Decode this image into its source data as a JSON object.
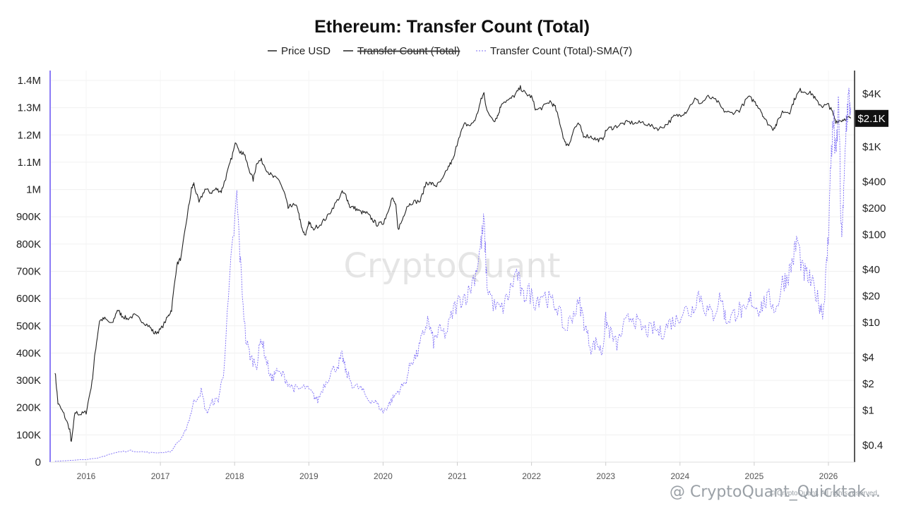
{
  "chart_data": {
    "type": "line",
    "title": "Ethereum: Transfer Count (Total)",
    "legend": [
      {
        "label": "Price USD",
        "color": "#222222",
        "style": "solid",
        "hidden": false
      },
      {
        "label": "Transfer Count (Total)",
        "color": "#222222",
        "style": "solid",
        "hidden": true
      },
      {
        "label": "Transfer Count (Total)-SMA(7)",
        "color": "#7b6cf6",
        "style": "dashed",
        "hidden": false
      }
    ],
    "legend_position": "top-center",
    "x_ticks": [
      "2016",
      "2017",
      "2018",
      "2019",
      "2020",
      "2021",
      "2022",
      "2023",
      "2024",
      "2025",
      "2026"
    ],
    "x_range": [
      2015.58,
      2026.3
    ],
    "y_left": {
      "ticks": [
        "0",
        "100K",
        "200K",
        "300K",
        "400K",
        "500K",
        "600K",
        "700K",
        "800K",
        "900K",
        "1M",
        "1.1M",
        "1.2M",
        "1.3M",
        "1.4M"
      ],
      "range": [
        0,
        1400000
      ]
    },
    "y_right": {
      "scale": "log",
      "ticks": [
        {
          "label": "$4K",
          "value": 4000
        },
        {
          "label": "$1K",
          "value": 1000
        },
        {
          "label": "$400",
          "value": 400
        },
        {
          "label": "$200",
          "value": 200
        },
        {
          "label": "$100",
          "value": 100
        },
        {
          "label": "$40",
          "value": 40
        },
        {
          "label": "$20",
          "value": 20
        },
        {
          "label": "$10",
          "value": 10
        },
        {
          "label": "$4",
          "value": 4
        },
        {
          "label": "$2",
          "value": 2
        },
        {
          "label": "$1",
          "value": 1
        },
        {
          "label": "$0.4",
          "value": 0.4
        }
      ],
      "current_value_label": "$2.1K",
      "current_value": 2100
    },
    "series": [
      {
        "name": "Price USD",
        "axis": "right",
        "color": "#222222",
        "points": [
          [
            2015.58,
            2.8
          ],
          [
            2015.62,
            1.2
          ],
          [
            2015.7,
            0.9
          ],
          [
            2015.78,
            0.6
          ],
          [
            2015.8,
            0.42
          ],
          [
            2015.85,
            0.95
          ],
          [
            2015.92,
            0.9
          ],
          [
            2016.0,
            0.95
          ],
          [
            2016.08,
            2.1
          ],
          [
            2016.12,
            4.5
          ],
          [
            2016.18,
            10.5
          ],
          [
            2016.25,
            11
          ],
          [
            2016.35,
            9.5
          ],
          [
            2016.42,
            14
          ],
          [
            2016.48,
            12
          ],
          [
            2016.55,
            11
          ],
          [
            2016.65,
            12
          ],
          [
            2016.75,
            10.5
          ],
          [
            2016.85,
            9.0
          ],
          [
            2016.92,
            7.5
          ],
          [
            2017.0,
            8.2
          ],
          [
            2017.1,
            11.5
          ],
          [
            2017.15,
            14
          ],
          [
            2017.22,
            45
          ],
          [
            2017.28,
            55
          ],
          [
            2017.36,
            160
          ],
          [
            2017.42,
            330
          ],
          [
            2017.45,
            380
          ],
          [
            2017.52,
            230
          ],
          [
            2017.6,
            330
          ],
          [
            2017.68,
            300
          ],
          [
            2017.75,
            330
          ],
          [
            2017.82,
            310
          ],
          [
            2017.88,
            440
          ],
          [
            2017.95,
            700
          ],
          [
            2018.02,
            1150
          ],
          [
            2018.08,
            850
          ],
          [
            2018.12,
            860
          ],
          [
            2018.18,
            600
          ],
          [
            2018.25,
            420
          ],
          [
            2018.3,
            670
          ],
          [
            2018.36,
            700
          ],
          [
            2018.45,
            520
          ],
          [
            2018.52,
            450
          ],
          [
            2018.6,
            420
          ],
          [
            2018.68,
            280
          ],
          [
            2018.72,
            200
          ],
          [
            2018.78,
            220
          ],
          [
            2018.85,
            200
          ],
          [
            2018.9,
            120
          ],
          [
            2018.95,
            95
          ],
          [
            2019.0,
            140
          ],
          [
            2019.05,
            115
          ],
          [
            2019.15,
            130
          ],
          [
            2019.25,
            160
          ],
          [
            2019.35,
            220
          ],
          [
            2019.45,
            300
          ],
          [
            2019.5,
            280
          ],
          [
            2019.55,
            210
          ],
          [
            2019.62,
            200
          ],
          [
            2019.7,
            180
          ],
          [
            2019.78,
            175
          ],
          [
            2019.85,
            150
          ],
          [
            2019.92,
            130
          ],
          [
            2020.0,
            135
          ],
          [
            2020.05,
            170
          ],
          [
            2020.12,
            260
          ],
          [
            2020.17,
            220
          ],
          [
            2020.2,
            115
          ],
          [
            2020.25,
            140
          ],
          [
            2020.32,
            210
          ],
          [
            2020.4,
            235
          ],
          [
            2020.5,
            240
          ],
          [
            2020.58,
            390
          ],
          [
            2020.65,
            380
          ],
          [
            2020.72,
            360
          ],
          [
            2020.8,
            420
          ],
          [
            2020.88,
            590
          ],
          [
            2020.95,
            730
          ],
          [
            2021.02,
            1300
          ],
          [
            2021.1,
            1800
          ],
          [
            2021.18,
            1750
          ],
          [
            2021.25,
            2100
          ],
          [
            2021.32,
            3400
          ],
          [
            2021.36,
            4100
          ],
          [
            2021.4,
            2500
          ],
          [
            2021.5,
            2000
          ],
          [
            2021.55,
            2300
          ],
          [
            2021.6,
            3200
          ],
          [
            2021.7,
            3400
          ],
          [
            2021.78,
            3900
          ],
          [
            2021.85,
            4700
          ],
          [
            2021.92,
            4000
          ],
          [
            2022.0,
            3700
          ],
          [
            2022.06,
            2600
          ],
          [
            2022.15,
            2800
          ],
          [
            2022.25,
            3300
          ],
          [
            2022.32,
            2800
          ],
          [
            2022.38,
            1900
          ],
          [
            2022.45,
            1100
          ],
          [
            2022.5,
            1050
          ],
          [
            2022.58,
            1650
          ],
          [
            2022.64,
            1800
          ],
          [
            2022.7,
            1350
          ],
          [
            2022.8,
            1300
          ],
          [
            2022.88,
            1200
          ],
          [
            2022.95,
            1200
          ],
          [
            2023.02,
            1600
          ],
          [
            2023.1,
            1650
          ],
          [
            2023.2,
            1800
          ],
          [
            2023.3,
            1900
          ],
          [
            2023.4,
            1850
          ],
          [
            2023.5,
            1900
          ],
          [
            2023.62,
            1700
          ],
          [
            2023.72,
            1600
          ],
          [
            2023.82,
            1800
          ],
          [
            2023.92,
            2200
          ],
          [
            2024.0,
            2300
          ],
          [
            2024.08,
            2500
          ],
          [
            2024.2,
            3500
          ],
          [
            2024.28,
            3100
          ],
          [
            2024.38,
            3700
          ],
          [
            2024.5,
            3300
          ],
          [
            2024.58,
            2600
          ],
          [
            2024.68,
            2400
          ],
          [
            2024.8,
            2600
          ],
          [
            2024.92,
            3700
          ],
          [
            2025.0,
            3300
          ],
          [
            2025.08,
            2700
          ],
          [
            2025.15,
            2000
          ],
          [
            2025.25,
            1600
          ],
          [
            2025.3,
            1800
          ],
          [
            2025.38,
            2500
          ],
          [
            2025.48,
            2500
          ],
          [
            2025.55,
            3600
          ],
          [
            2025.62,
            4400
          ],
          [
            2025.7,
            4200
          ],
          [
            2025.78,
            4000
          ],
          [
            2025.85,
            3200
          ],
          [
            2025.92,
            2900
          ],
          [
            2026.0,
            3000
          ],
          [
            2026.05,
            2500
          ],
          [
            2026.1,
            1950
          ],
          [
            2026.18,
            2000
          ],
          [
            2026.25,
            2150
          ],
          [
            2026.3,
            2100
          ]
        ]
      },
      {
        "name": "Transfer Count (Total)-SMA(7)",
        "axis": "left",
        "color": "#7b6cf6",
        "points": [
          [
            2015.58,
            3000
          ],
          [
            2015.75,
            6000
          ],
          [
            2016.0,
            10000
          ],
          [
            2016.15,
            14000
          ],
          [
            2016.3,
            28000
          ],
          [
            2016.45,
            38000
          ],
          [
            2016.6,
            42000
          ],
          [
            2016.75,
            38000
          ],
          [
            2016.9,
            34000
          ],
          [
            2017.05,
            36000
          ],
          [
            2017.15,
            40000
          ],
          [
            2017.22,
            70000
          ],
          [
            2017.3,
            90000
          ],
          [
            2017.38,
            150000
          ],
          [
            2017.45,
            220000
          ],
          [
            2017.55,
            260000
          ],
          [
            2017.62,
            180000
          ],
          [
            2017.7,
            220000
          ],
          [
            2017.78,
            230000
          ],
          [
            2017.85,
            330000
          ],
          [
            2017.95,
            720000
          ],
          [
            2018.03,
            970000
          ],
          [
            2018.08,
            720000
          ],
          [
            2018.15,
            450000
          ],
          [
            2018.22,
            380000
          ],
          [
            2018.3,
            360000
          ],
          [
            2018.36,
            460000
          ],
          [
            2018.42,
            380000
          ],
          [
            2018.5,
            300000
          ],
          [
            2018.55,
            330000
          ],
          [
            2018.65,
            320000
          ],
          [
            2018.75,
            280000
          ],
          [
            2018.85,
            265000
          ],
          [
            2018.95,
            275000
          ],
          [
            2019.05,
            250000
          ],
          [
            2019.12,
            225000
          ],
          [
            2019.2,
            280000
          ],
          [
            2019.3,
            330000
          ],
          [
            2019.4,
            360000
          ],
          [
            2019.45,
            390000
          ],
          [
            2019.5,
            330000
          ],
          [
            2019.6,
            280000
          ],
          [
            2019.7,
            270000
          ],
          [
            2019.8,
            230000
          ],
          [
            2019.9,
            220000
          ],
          [
            2020.0,
            185000
          ],
          [
            2020.05,
            200000
          ],
          [
            2020.12,
            230000
          ],
          [
            2020.2,
            260000
          ],
          [
            2020.3,
            290000
          ],
          [
            2020.38,
            370000
          ],
          [
            2020.45,
            390000
          ],
          [
            2020.52,
            450000
          ],
          [
            2020.6,
            520000
          ],
          [
            2020.68,
            440000
          ],
          [
            2020.75,
            480000
          ],
          [
            2020.85,
            470000
          ],
          [
            2020.95,
            560000
          ],
          [
            2021.05,
            600000
          ],
          [
            2021.15,
            620000
          ],
          [
            2021.25,
            700000
          ],
          [
            2021.32,
            800000
          ],
          [
            2021.36,
            880000
          ],
          [
            2021.4,
            650000
          ],
          [
            2021.5,
            570000
          ],
          [
            2021.6,
            560000
          ],
          [
            2021.7,
            620000
          ],
          [
            2021.8,
            700000
          ],
          [
            2021.88,
            600000
          ],
          [
            2021.95,
            630000
          ],
          [
            2022.05,
            590000
          ],
          [
            2022.15,
            620000
          ],
          [
            2022.25,
            590000
          ],
          [
            2022.35,
            570000
          ],
          [
            2022.45,
            480000
          ],
          [
            2022.55,
            540000
          ],
          [
            2022.65,
            580000
          ],
          [
            2022.72,
            500000
          ],
          [
            2022.8,
            420000
          ],
          [
            2022.88,
            440000
          ],
          [
            2022.95,
            400000
          ],
          [
            2023.0,
            520000
          ],
          [
            2023.05,
            480000
          ],
          [
            2023.15,
            430000
          ],
          [
            2023.25,
            500000
          ],
          [
            2023.35,
            540000
          ],
          [
            2023.45,
            500000
          ],
          [
            2023.55,
            480000
          ],
          [
            2023.65,
            490000
          ],
          [
            2023.75,
            470000
          ],
          [
            2023.85,
            510000
          ],
          [
            2023.95,
            520000
          ],
          [
            2024.05,
            560000
          ],
          [
            2024.15,
            550000
          ],
          [
            2024.25,
            620000
          ],
          [
            2024.35,
            560000
          ],
          [
            2024.45,
            540000
          ],
          [
            2024.55,
            610000
          ],
          [
            2024.62,
            520000
          ],
          [
            2024.72,
            540000
          ],
          [
            2024.8,
            560000
          ],
          [
            2024.88,
            540000
          ],
          [
            2024.95,
            600000
          ],
          [
            2025.05,
            560000
          ],
          [
            2025.12,
            580000
          ],
          [
            2025.2,
            600000
          ],
          [
            2025.3,
            560000
          ],
          [
            2025.38,
            660000
          ],
          [
            2025.45,
            680000
          ],
          [
            2025.52,
            740000
          ],
          [
            2025.58,
            820000
          ],
          [
            2025.65,
            700000
          ],
          [
            2025.72,
            680000
          ],
          [
            2025.8,
            640000
          ],
          [
            2025.88,
            580000
          ],
          [
            2025.93,
            550000
          ],
          [
            2025.97,
            700000
          ],
          [
            2026.0,
            840000
          ],
          [
            2026.04,
            1150000
          ],
          [
            2026.07,
            1250000
          ],
          [
            2026.1,
            1100000
          ],
          [
            2026.14,
            1330000
          ],
          [
            2026.17,
            830000
          ],
          [
            2026.2,
            920000
          ],
          [
            2026.24,
            1250000
          ],
          [
            2026.27,
            1330000
          ],
          [
            2026.3,
            1300000
          ]
        ]
      }
    ]
  },
  "watermark": {
    "center": "CryptoQuant",
    "bottom_main": "@ CryptoQuant_Quicktak...",
    "bottom_small": "© CryptoQuant. All rights reserved"
  }
}
